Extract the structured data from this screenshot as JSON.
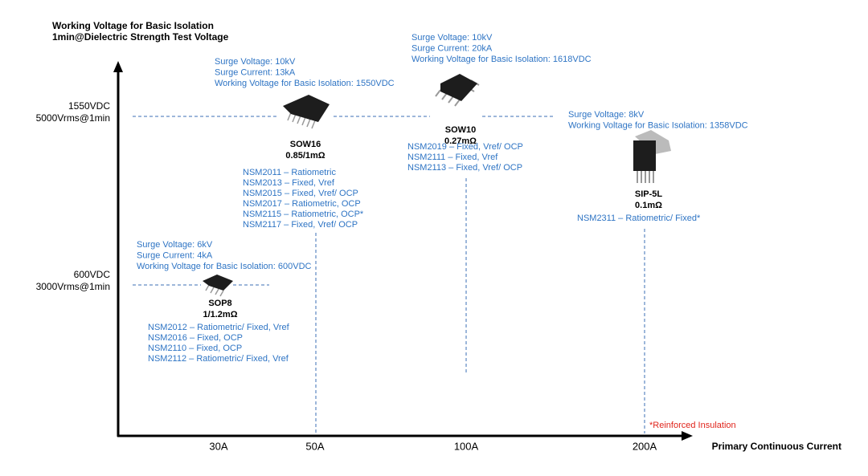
{
  "y_axis": {
    "title_lines": [
      "Working Voltage for Basic Isolation",
      "1min@Dielectric Strength Test Voltage"
    ],
    "levels": [
      {
        "label_lines": [
          "1550VDC",
          "5000Vrms@1min"
        ]
      },
      {
        "label_lines": [
          "600VDC",
          "3000Vrms@1min"
        ]
      }
    ]
  },
  "x_axis": {
    "title": "Primary Continuous Current",
    "labels": [
      "30A",
      "50A",
      "100A",
      "200A"
    ]
  },
  "packages": [
    {
      "name": "SOW16",
      "resistance": "0.85/1mΩ",
      "specs": [
        "Surge Voltage: 10kV",
        "Surge Current: 13kA",
        "Working Voltage for Basic Isolation: 1550VDC"
      ],
      "parts": [
        "NSM2011 – Ratiometric",
        "NSM2013 – Fixed, Vref",
        "NSM2015 – Fixed, Vref/ OCP",
        "NSM2017 – Ratiometric,  OCP",
        "NSM2115 – Ratiometric,  OCP*",
        "NSM2117 – Fixed,  Vref/ OCP"
      ]
    },
    {
      "name": "SOW10",
      "resistance": "0.27mΩ",
      "specs": [
        "Surge Voltage: 10kV",
        "Surge Current: 20kA",
        "Working Voltage for Basic Isolation: 1618VDC"
      ],
      "parts": [
        "NSM2019 – Fixed, Vref/ OCP",
        "NSM2111 – Fixed, Vref",
        "NSM2113 – Fixed, Vref/ OCP"
      ]
    },
    {
      "name": "SIP-5L",
      "resistance": "0.1mΩ",
      "specs": [
        "Surge Voltage: 8kV",
        "Working Voltage for Basic Isolation: 1358VDC"
      ],
      "parts": [
        "NSM2311 – Ratiometric/ Fixed*"
      ]
    },
    {
      "name": "SOP8",
      "resistance": "1/1.2mΩ",
      "specs": [
        "Surge Voltage: 6kV",
        "Surge Current: 4kA",
        "Working Voltage for Basic Isolation: 600VDC"
      ],
      "parts": [
        "NSM2012 – Ratiometric/ Fixed, Vref",
        "NSM2016 – Fixed, OCP",
        "NSM2110 – Fixed, OCP",
        "NSM2112 – Ratiometric/ Fixed, Vref"
      ]
    }
  ],
  "footnote": "*Reinforced Insulation"
}
